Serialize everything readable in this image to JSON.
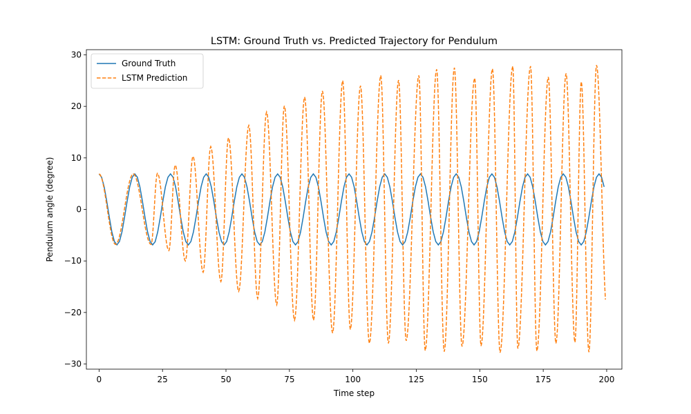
{
  "chart_data": {
    "type": "line",
    "title": "LSTM: Ground Truth vs. Predicted Trajectory for Pendulum",
    "xlabel": "Time step",
    "ylabel": "Pendulum angle (degree)",
    "xlim": [
      -5,
      206
    ],
    "ylim": [
      -31,
      31
    ],
    "xticks": [
      0,
      25,
      50,
      75,
      100,
      125,
      150,
      175,
      200
    ],
    "yticks": [
      -30,
      -20,
      -10,
      0,
      10,
      20,
      30
    ],
    "legend_position": "upper-left",
    "grid": false,
    "series": [
      {
        "name": "Ground Truth",
        "color": "#1f77b4",
        "style": "solid",
        "model": "sinusoid",
        "amplitude": 6.9,
        "period": 14.15,
        "phase_deg": 90,
        "x_start": 0,
        "x_end": 199,
        "values": [
          6.9,
          6.24,
          4.39,
          1.63,
          -1.46,
          -4.32,
          -6.2,
          -6.88,
          -6.22,
          -4.32,
          -1.47,
          1.57,
          4.36,
          6.24,
          6.9,
          6.26,
          4.38,
          1.58,
          -1.5,
          -4.33,
          -6.22,
          -6.88,
          -6.26,
          -4.35,
          -1.54,
          1.59,
          4.39,
          6.24,
          6.9,
          6.25,
          4.36,
          1.55,
          -1.56,
          -4.35,
          -6.23,
          -6.89,
          -6.23,
          -4.36,
          -1.54,
          1.58,
          4.39,
          6.24,
          6.9,
          6.24,
          4.37,
          1.56,
          -1.57,
          -4.37,
          -6.24,
          -6.89,
          -6.25,
          -4.38,
          -1.57,
          1.57,
          4.38,
          6.24,
          6.89,
          6.24,
          4.36,
          1.55,
          -1.58,
          -4.39,
          -6.25,
          -6.89,
          -6.24,
          -4.37,
          -1.56,
          1.57,
          4.37,
          6.24,
          6.89,
          6.25,
          4.37,
          1.56,
          -1.56,
          -4.37,
          -6.24,
          -6.89,
          -6.25,
          -4.38,
          -1.57,
          1.57,
          4.38,
          6.24,
          6.89,
          6.24,
          4.37,
          1.55,
          -1.57,
          -4.38,
          -6.24,
          -6.89,
          -6.24,
          -4.37,
          -1.56,
          1.57,
          4.37,
          6.24,
          6.89,
          6.24,
          4.37,
          1.56,
          -1.57,
          -4.37,
          -6.24,
          -6.89,
          -6.24,
          -4.37,
          -1.56,
          1.57,
          4.37,
          6.24,
          6.89,
          6.24,
          4.37,
          1.56,
          -1.57,
          -4.37,
          -6.24,
          -6.89,
          -6.24,
          -4.37,
          -1.56,
          1.57,
          4.37,
          6.24,
          6.89,
          6.24,
          4.37,
          1.56,
          -1.57,
          -4.37,
          -6.24,
          -6.89,
          -6.24,
          -4.37,
          -1.56,
          1.57,
          4.37,
          6.24,
          6.89,
          6.24,
          4.37,
          1.56,
          -1.57,
          -4.37,
          -6.24,
          -6.89,
          -6.24,
          -4.37,
          -1.56,
          1.57,
          4.37,
          6.24,
          6.89,
          6.24,
          4.37,
          1.56,
          -1.57,
          -4.37,
          -6.24,
          -6.89,
          -6.24,
          -4.37,
          -1.56,
          1.57,
          4.37,
          6.24,
          6.89,
          6.24,
          4.37,
          1.56,
          -1.57,
          -4.37,
          -6.24,
          -6.89,
          -6.24,
          -4.37,
          -1.56,
          1.57,
          4.37,
          6.24,
          6.89,
          6.24,
          4.37,
          1.56,
          -1.57,
          -4.37,
          -6.24,
          -6.89,
          -6.24,
          -4.37,
          -1.56,
          1.57,
          4.37,
          6.24,
          6.89,
          6.24,
          4.37
        ]
      },
      {
        "name": "LSTM Prediction",
        "color": "#ff7f0e",
        "style": "dashed",
        "model": "growing-sinusoid",
        "peaks": [
          [
            0,
            6.9
          ],
          [
            13.5,
            6.9
          ],
          [
            23,
            7.0
          ],
          [
            30,
            8.6
          ],
          [
            37,
            10.3
          ],
          [
            44,
            12.2
          ],
          [
            51,
            13.9
          ],
          [
            59,
            16.3
          ],
          [
            66,
            18.9
          ],
          [
            73,
            20.1
          ],
          [
            81,
            21.8
          ],
          [
            88,
            23.0
          ],
          [
            96,
            25.0
          ],
          [
            103,
            24.0
          ],
          [
            111,
            26.0
          ],
          [
            118,
            25.1
          ],
          [
            126,
            26.0
          ],
          [
            133,
            27.2
          ],
          [
            140,
            27.5
          ],
          [
            148,
            25.5
          ],
          [
            155,
            27.3
          ],
          [
            163,
            27.8
          ],
          [
            170,
            27.8
          ],
          [
            177,
            25.7
          ],
          [
            184,
            26.4
          ],
          [
            190,
            24.8
          ],
          [
            196,
            28.0
          ]
        ],
        "troughs": [
          [
            6.5,
            -6.8
          ],
          [
            20.5,
            -6.8
          ],
          [
            27.5,
            -8.0
          ],
          [
            34,
            -10.0
          ],
          [
            41,
            -12.2
          ],
          [
            48,
            -14.0
          ],
          [
            55,
            -15.9
          ],
          [
            62.5,
            -17.3
          ],
          [
            70,
            -18.5
          ],
          [
            77,
            -21.5
          ],
          [
            84.5,
            -21.5
          ],
          [
            92,
            -24.0
          ],
          [
            99,
            -23.3
          ],
          [
            106.5,
            -26.0
          ],
          [
            114,
            -26.0
          ],
          [
            121,
            -25.5
          ],
          [
            128.5,
            -27.4
          ],
          [
            136,
            -27.6
          ],
          [
            143,
            -26.6
          ],
          [
            150.5,
            -26.5
          ],
          [
            158,
            -27.8
          ],
          [
            165,
            -27.0
          ],
          [
            172.5,
            -27.5
          ],
          [
            180,
            -26.0
          ],
          [
            187.5,
            -25.8
          ],
          [
            193,
            -27.7
          ]
        ],
        "x_end": 199.5,
        "y_end": -17.5
      }
    ]
  }
}
